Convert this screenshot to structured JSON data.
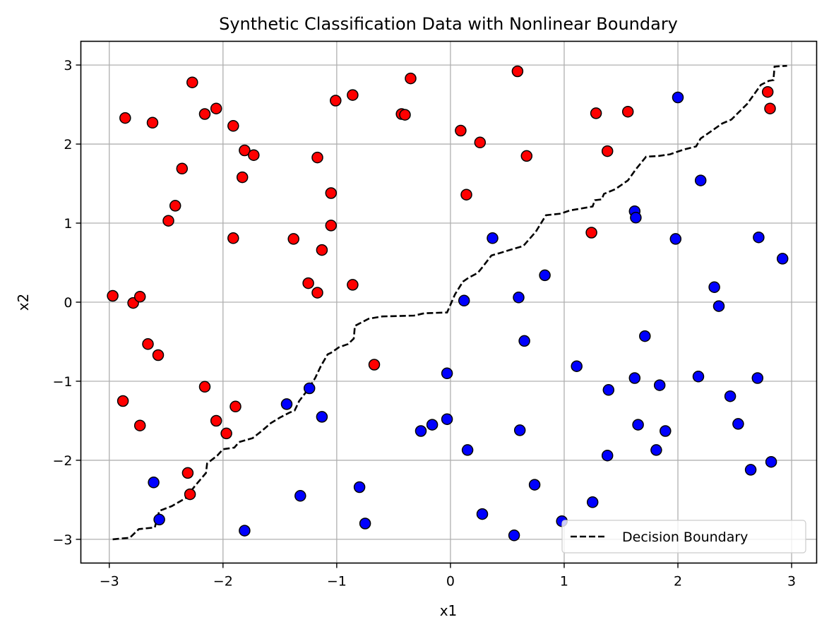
{
  "chart_data": {
    "type": "scatter",
    "title": "Synthetic Classification Data with Nonlinear Boundary",
    "xlabel": "x1",
    "ylabel": "x2",
    "xlim": [
      -3.25,
      3.22
    ],
    "ylim": [
      -3.3,
      3.3
    ],
    "xticks": [
      -3,
      -2,
      -1,
      0,
      1,
      2,
      3
    ],
    "yticks": [
      -3,
      -2,
      -1,
      0,
      1,
      2,
      3
    ],
    "grid": true,
    "legend": {
      "placement": "bottom-right",
      "entries": [
        "Decision Boundary"
      ]
    },
    "colors": {
      "red": "#ff0000",
      "blue": "#0000ff",
      "boundary": "#000000",
      "grid": "#b0b0b0"
    },
    "series": [
      {
        "color": "red",
        "points": [
          [
            -2.97,
            0.08
          ],
          [
            -2.88,
            -1.25
          ],
          [
            -2.86,
            2.33
          ],
          [
            -2.79,
            -0.01
          ],
          [
            -2.73,
            0.07
          ],
          [
            -2.73,
            -1.56
          ],
          [
            -2.66,
            -0.53
          ],
          [
            -2.62,
            2.27
          ],
          [
            -2.57,
            -0.67
          ],
          [
            -2.48,
            1.03
          ],
          [
            -2.42,
            1.22
          ],
          [
            -2.36,
            1.69
          ],
          [
            -2.31,
            -2.16
          ],
          [
            -2.29,
            -2.43
          ],
          [
            -2.27,
            2.78
          ],
          [
            -2.16,
            2.38
          ],
          [
            -2.16,
            -1.07
          ],
          [
            -2.06,
            2.45
          ],
          [
            -2.06,
            -1.5
          ],
          [
            -1.97,
            -1.66
          ],
          [
            -1.91,
            2.23
          ],
          [
            -1.91,
            0.81
          ],
          [
            -1.89,
            -1.32
          ],
          [
            -1.83,
            1.58
          ],
          [
            -1.81,
            1.92
          ],
          [
            -1.73,
            1.86
          ],
          [
            -1.38,
            0.8
          ],
          [
            -1.25,
            0.24
          ],
          [
            -1.17,
            1.83
          ],
          [
            -1.17,
            0.12
          ],
          [
            -1.13,
            0.66
          ],
          [
            -1.05,
            1.38
          ],
          [
            -1.05,
            0.97
          ],
          [
            -1.01,
            2.55
          ],
          [
            -0.86,
            2.62
          ],
          [
            -0.86,
            0.22
          ],
          [
            -0.67,
            -0.79
          ],
          [
            -0.43,
            2.38
          ],
          [
            -0.4,
            2.37
          ],
          [
            -0.35,
            2.83
          ],
          [
            0.09,
            2.17
          ],
          [
            0.14,
            1.36
          ],
          [
            0.26,
            2.02
          ],
          [
            0.59,
            2.92
          ],
          [
            0.67,
            1.85
          ],
          [
            1.24,
            0.88
          ],
          [
            1.28,
            2.39
          ],
          [
            1.38,
            1.91
          ],
          [
            1.56,
            2.41
          ],
          [
            2.79,
            2.66
          ],
          [
            2.81,
            2.45
          ]
        ]
      },
      {
        "color": "blue",
        "points": [
          [
            -2.61,
            -2.28
          ],
          [
            -2.56,
            -2.75
          ],
          [
            -1.81,
            -2.89
          ],
          [
            -1.44,
            -1.29
          ],
          [
            -1.32,
            -2.45
          ],
          [
            -1.24,
            -1.09
          ],
          [
            -1.13,
            -1.45
          ],
          [
            -0.8,
            -2.34
          ],
          [
            -0.75,
            -2.8
          ],
          [
            -0.26,
            -1.63
          ],
          [
            -0.16,
            -1.55
          ],
          [
            -0.03,
            -0.9
          ],
          [
            -0.03,
            -1.48
          ],
          [
            0.12,
            0.02
          ],
          [
            0.15,
            -1.87
          ],
          [
            0.28,
            -2.68
          ],
          [
            0.37,
            0.81
          ],
          [
            0.56,
            -2.95
          ],
          [
            0.6,
            0.06
          ],
          [
            0.61,
            -1.62
          ],
          [
            0.65,
            -0.49
          ],
          [
            0.74,
            -2.31
          ],
          [
            0.83,
            0.34
          ],
          [
            0.98,
            -2.77
          ],
          [
            1.11,
            -0.81
          ],
          [
            1.25,
            -2.53
          ],
          [
            1.38,
            -1.94
          ],
          [
            1.39,
            -1.11
          ],
          [
            1.62,
            1.15
          ],
          [
            1.62,
            -0.96
          ],
          [
            1.63,
            1.07
          ],
          [
            1.65,
            -1.55
          ],
          [
            1.71,
            -0.43
          ],
          [
            1.81,
            -1.87
          ],
          [
            1.84,
            -1.05
          ],
          [
            1.89,
            -1.63
          ],
          [
            1.98,
            0.8
          ],
          [
            2.0,
            2.59
          ],
          [
            2.18,
            -0.94
          ],
          [
            2.2,
            1.54
          ],
          [
            2.32,
            0.19
          ],
          [
            2.36,
            -0.05
          ],
          [
            2.46,
            -1.19
          ],
          [
            2.53,
            -1.54
          ],
          [
            2.64,
            -2.12
          ],
          [
            2.7,
            -0.96
          ],
          [
            2.71,
            0.82
          ],
          [
            2.82,
            -2.02
          ],
          [
            2.92,
            0.55
          ]
        ]
      }
    ],
    "boundary": {
      "name": "Decision Boundary",
      "style": "dashed",
      "points": [
        [
          -2.97,
          -3.0
        ],
        [
          -2.82,
          -2.98
        ],
        [
          -2.74,
          -2.87
        ],
        [
          -2.6,
          -2.85
        ],
        [
          -2.56,
          -2.64
        ],
        [
          -2.45,
          -2.58
        ],
        [
          -2.33,
          -2.48
        ],
        [
          -2.25,
          -2.33
        ],
        [
          -2.15,
          -2.16
        ],
        [
          -2.14,
          -2.04
        ],
        [
          -2.05,
          -1.94
        ],
        [
          -2.0,
          -1.86
        ],
        [
          -1.9,
          -1.84
        ],
        [
          -1.86,
          -1.77
        ],
        [
          -1.74,
          -1.72
        ],
        [
          -1.66,
          -1.63
        ],
        [
          -1.58,
          -1.53
        ],
        [
          -1.5,
          -1.46
        ],
        [
          -1.42,
          -1.4
        ],
        [
          -1.37,
          -1.37
        ],
        [
          -1.33,
          -1.25
        ],
        [
          -1.25,
          -1.1
        ],
        [
          -1.19,
          -0.96
        ],
        [
          -1.14,
          -0.81
        ],
        [
          -1.08,
          -0.66
        ],
        [
          -1.05,
          -0.64
        ],
        [
          -0.98,
          -0.57
        ],
        [
          -0.9,
          -0.53
        ],
        [
          -0.85,
          -0.46
        ],
        [
          -0.84,
          -0.3
        ],
        [
          -0.72,
          -0.21
        ],
        [
          -0.6,
          -0.18
        ],
        [
          -0.32,
          -0.17
        ],
        [
          -0.23,
          -0.14
        ],
        [
          -0.03,
          -0.13
        ],
        [
          0.04,
          0.1
        ],
        [
          0.11,
          0.26
        ],
        [
          0.16,
          0.31
        ],
        [
          0.24,
          0.37
        ],
        [
          0.28,
          0.44
        ],
        [
          0.36,
          0.59
        ],
        [
          0.43,
          0.62
        ],
        [
          0.52,
          0.66
        ],
        [
          0.64,
          0.71
        ],
        [
          0.75,
          0.89
        ],
        [
          0.84,
          1.1
        ],
        [
          0.97,
          1.12
        ],
        [
          1.05,
          1.16
        ],
        [
          1.13,
          1.18
        ],
        [
          1.25,
          1.21
        ],
        [
          1.27,
          1.29
        ],
        [
          1.33,
          1.3
        ],
        [
          1.35,
          1.37
        ],
        [
          1.45,
          1.43
        ],
        [
          1.5,
          1.48
        ],
        [
          1.56,
          1.54
        ],
        [
          1.63,
          1.68
        ],
        [
          1.72,
          1.84
        ],
        [
          1.83,
          1.85
        ],
        [
          1.93,
          1.87
        ],
        [
          2.05,
          1.93
        ],
        [
          2.16,
          1.97
        ],
        [
          2.2,
          2.07
        ],
        [
          2.28,
          2.15
        ],
        [
          2.39,
          2.26
        ],
        [
          2.47,
          2.31
        ],
        [
          2.61,
          2.51
        ],
        [
          2.73,
          2.75
        ],
        [
          2.8,
          2.8
        ],
        [
          2.84,
          2.81
        ],
        [
          2.85,
          2.98
        ],
        [
          2.96,
          2.99
        ]
      ]
    }
  }
}
